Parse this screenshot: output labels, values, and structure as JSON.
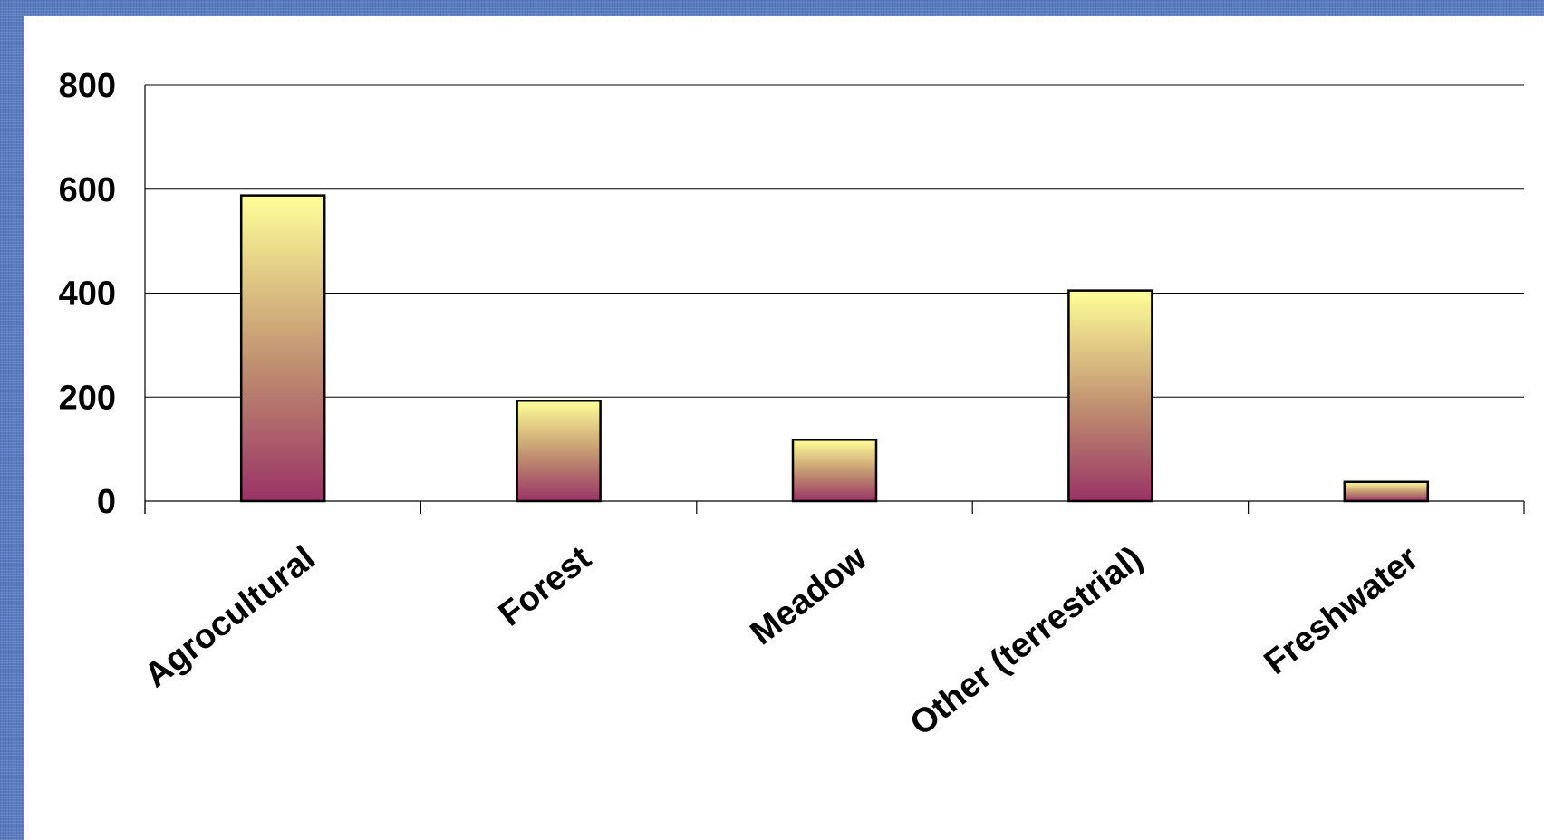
{
  "chart_data": {
    "type": "bar",
    "title": "",
    "xlabel": "",
    "ylabel": "",
    "categories": [
      "Agrocultural",
      "Forest",
      "Meadow",
      "Other (terrestrial)",
      "Freshwater"
    ],
    "values": [
      588,
      193,
      118,
      405,
      37
    ],
    "ylim": [
      0,
      800
    ],
    "yticks": [
      0,
      200,
      400,
      600,
      800
    ],
    "grid": true,
    "legend": "none",
    "colors": {
      "bar_top": "#ffff99",
      "bar_mid": "#c09070",
      "bar_bottom": "#993366",
      "bar_outline": "#000000",
      "frame": "#5a7cc0",
      "plot_bg": "#ffffff"
    }
  }
}
